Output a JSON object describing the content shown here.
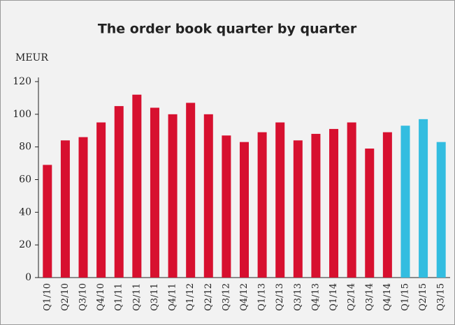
{
  "chart_data": {
    "type": "bar",
    "title": "The order book quarter by quarter",
    "y_label": "MEUR",
    "categories": [
      "Q1/10",
      "Q2/10",
      "Q3/10",
      "Q4/10",
      "Q1/11",
      "Q2/11",
      "Q3/11",
      "Q4/11",
      "Q1/12",
      "Q2/12",
      "Q3/12",
      "Q4/12",
      "Q1/13",
      "Q2/13",
      "Q3/13",
      "Q4/13",
      "Q1/14",
      "Q2/14",
      "Q3/14",
      "Q4/14",
      "Q1/15",
      "Q2/15",
      "Q3/15"
    ],
    "values": [
      69,
      84,
      86,
      95,
      105,
      112,
      104,
      100,
      107,
      100,
      87,
      83,
      89,
      95,
      84,
      88,
      91,
      95,
      79,
      89,
      93,
      97,
      83
    ],
    "colors": [
      "#d7102f",
      "#d7102f",
      "#d7102f",
      "#d7102f",
      "#d7102f",
      "#d7102f",
      "#d7102f",
      "#d7102f",
      "#d7102f",
      "#d7102f",
      "#d7102f",
      "#d7102f",
      "#d7102f",
      "#d7102f",
      "#d7102f",
      "#d7102f",
      "#d7102f",
      "#d7102f",
      "#d7102f",
      "#d7102f",
      "#33bde0",
      "#33bde0",
      "#33bde0"
    ],
    "ylim": [
      0,
      120
    ],
    "yticks": [
      0,
      20,
      40,
      60,
      80,
      100,
      120
    ],
    "grid": false
  }
}
